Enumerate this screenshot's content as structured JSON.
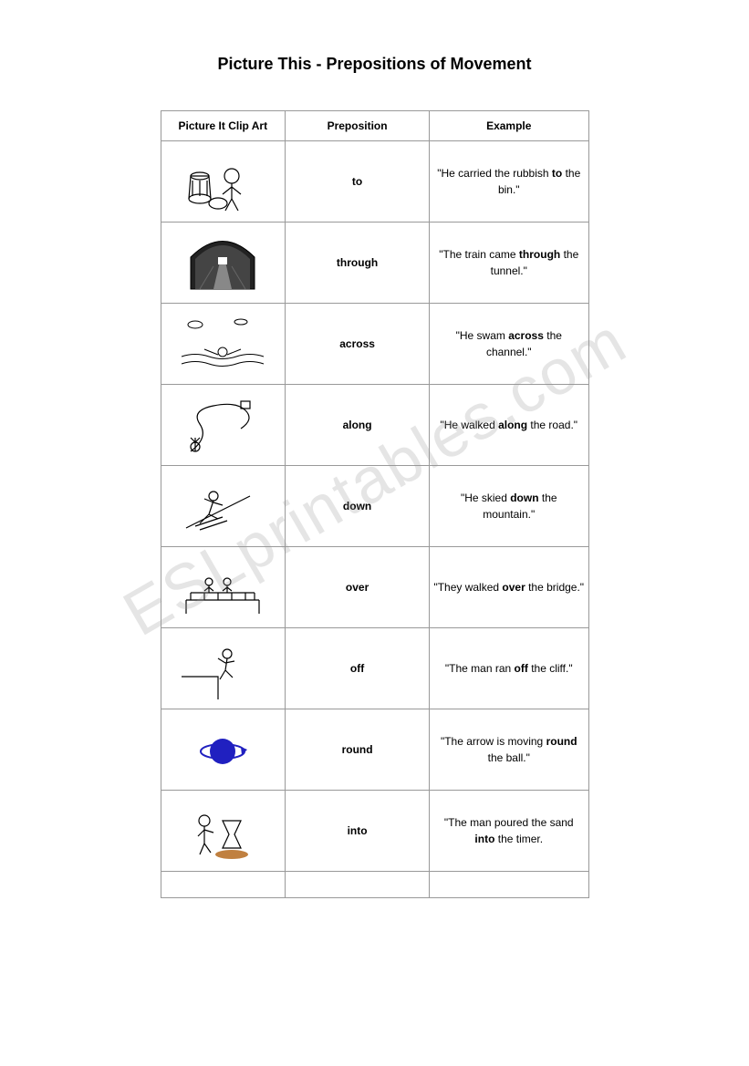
{
  "title": "Picture This - Prepositions of Movement",
  "watermark": "ESLprintables.com",
  "headers": {
    "col1": "Picture It Clip Art",
    "col2": "Preposition",
    "col3": "Example"
  },
  "rows": [
    {
      "preposition": "to",
      "example_pre": "\"He carried the rubbish ",
      "example_bold": "to",
      "example_post": " the bin.\"",
      "clipart": "bin"
    },
    {
      "preposition": "through",
      "example_pre": "\"The train came ",
      "example_bold": "through",
      "example_post": " the tunnel.\"",
      "clipart": "tunnel"
    },
    {
      "preposition": "across",
      "example_pre": "\"He swam ",
      "example_bold": "across",
      "example_post": " the channel.\"",
      "clipart": "swim"
    },
    {
      "preposition": "along",
      "example_pre": "\"He walked ",
      "example_bold": "along",
      "example_post": " the road.\"",
      "clipart": "road"
    },
    {
      "preposition": "down",
      "example_pre": "\"He skied ",
      "example_bold": "down",
      "example_post": " the mountain.\"",
      "clipart": "ski"
    },
    {
      "preposition": "over",
      "example_pre": "\"They walked ",
      "example_bold": "over",
      "example_post": " the bridge.\"",
      "clipart": "bridge"
    },
    {
      "preposition": "off",
      "example_pre": "\"The man ran ",
      "example_bold": "off",
      "example_post": " the cliff.\"",
      "clipart": "cliff"
    },
    {
      "preposition": "round",
      "example_pre": "\"The arrow is moving ",
      "example_bold": "round",
      "example_post": " the ball.\"",
      "clipart": "ball"
    },
    {
      "preposition": "into",
      "example_pre": "\"The man poured the sand ",
      "example_bold": "into",
      "example_post": " the timer.",
      "clipart": "timer"
    }
  ]
}
